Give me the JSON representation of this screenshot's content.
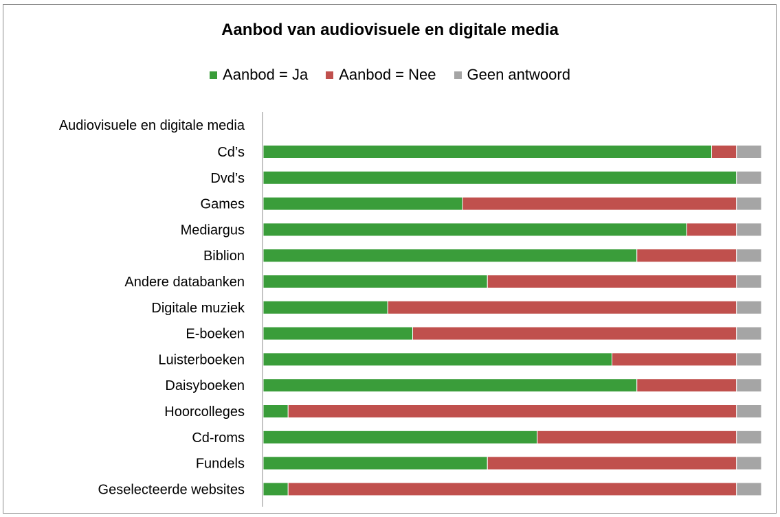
{
  "chart_data": {
    "type": "bar",
    "orientation": "horizontal",
    "stacked": true,
    "title": "Aanbod van audiovisuele en digitale media",
    "group_label": "Audiovisuele en digitale media",
    "categories": [
      "Cd’s",
      "Dvd’s",
      "Games",
      "Mediargus",
      "Biblion",
      "Andere databanken",
      "Digitale muziek",
      "E-boeken",
      "Luisterboeken",
      "Daisyboeken",
      "Hoorcolleges",
      "Cd-roms",
      "Fundels",
      "Geselecteerde websites"
    ],
    "series": [
      {
        "name": "Aanbod = Ja",
        "color": "#3a9d3a",
        "values": [
          90,
          95,
          40,
          85,
          75,
          45,
          25,
          30,
          70,
          75,
          5,
          55,
          45,
          5
        ]
      },
      {
        "name": "Aanbod = Nee",
        "color": "#c0504d",
        "values": [
          5,
          0,
          55,
          10,
          20,
          50,
          70,
          65,
          25,
          20,
          90,
          40,
          50,
          90
        ]
      },
      {
        "name": "Geen antwoord",
        "color": "#a5a5a5",
        "values": [
          5,
          5,
          5,
          5,
          5,
          5,
          5,
          5,
          5,
          5,
          5,
          5,
          5,
          5
        ]
      }
    ],
    "xlim": [
      0,
      100
    ],
    "legend_position": "top",
    "grid": false
  }
}
